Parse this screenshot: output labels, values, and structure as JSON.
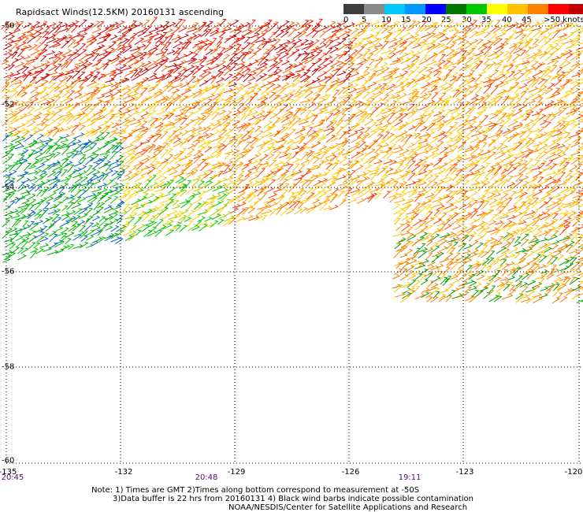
{
  "title": "Rapidsact Winds(12.5KM) 20160131 ascending",
  "legend": {
    "colors": [
      "#3c3c3c",
      "#8a8a8a",
      "#00c8ff",
      "#0096ff",
      "#0000ff",
      "#007800",
      "#00c800",
      "#ffff00",
      "#ffc000",
      "#ff8000",
      "#ff0000",
      "#c00000",
      "#7a2a00",
      "#b06030",
      "#ff00ff",
      "#b400ff",
      "#500096"
    ],
    "labels": [
      "0",
      "5",
      "10",
      "15",
      "20",
      "25",
      "30",
      "35",
      "40",
      "45",
      ">50 knots"
    ]
  },
  "lat_ticks": [
    "-50",
    "-52",
    "-54",
    "-56",
    "-58",
    "-60"
  ],
  "lon_ticks": [
    "-135",
    "-132",
    "-129",
    "-126",
    "-123",
    "-120"
  ],
  "time_ticks": [
    "20:45",
    "20:48",
    "19:11"
  ],
  "notes": [
    "Note: 1) Times are GMT 2)Times along bottom correspond to measurement at -50S",
    "3)Data buffer is 22 hrs from 20160131 4) Black wind barbs indicate possible contamination",
    "NOAA/NESDIS/Center for Satellite Applications and Research"
  ]
}
